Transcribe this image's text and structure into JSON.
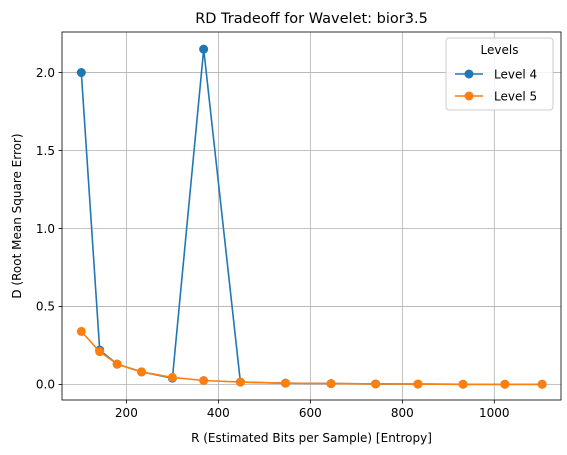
{
  "chart_data": {
    "type": "line",
    "title": "RD Tradeoff for Wavelet: bior3.5",
    "xlabel": "R (Estimated Bits per Sample) [Entropy]",
    "ylabel": "D (Root Mean Square Error)",
    "xlim": [
      60,
      1145
    ],
    "ylim": [
      -0.1,
      2.26
    ],
    "xticks": [
      200,
      400,
      600,
      800,
      1000
    ],
    "yticks": [
      0.0,
      0.5,
      1.0,
      1.5,
      2.0
    ],
    "xtick_labels": [
      "200",
      "400",
      "600",
      "800",
      "1000"
    ],
    "ytick_labels": [
      "0.0",
      "0.5",
      "1.0",
      "1.5",
      "2.0"
    ],
    "grid": true,
    "legend": {
      "title": "Levels",
      "location": "top-right"
    },
    "series": [
      {
        "name": "Level 4",
        "color": "#1f77b4",
        "marker": "circle",
        "x": [
          102,
          142,
          180,
          233,
          300,
          368,
          448,
          546,
          645,
          742,
          834,
          932,
          1023,
          1104
        ],
        "y": [
          2.0,
          0.22,
          0.13,
          0.08,
          0.04,
          2.15,
          0.015,
          0.008,
          0.005,
          0.003,
          0.002,
          0.001,
          0.001,
          0.001
        ]
      },
      {
        "name": "Level 5",
        "color": "#ff7f0e",
        "marker": "circle",
        "x": [
          102,
          142,
          180,
          233,
          300,
          368,
          448,
          546,
          645,
          742,
          834,
          932,
          1023,
          1104
        ],
        "y": [
          0.34,
          0.21,
          0.13,
          0.08,
          0.045,
          0.025,
          0.015,
          0.008,
          0.005,
          0.003,
          0.002,
          0.001,
          0.001,
          0.001
        ]
      }
    ]
  }
}
